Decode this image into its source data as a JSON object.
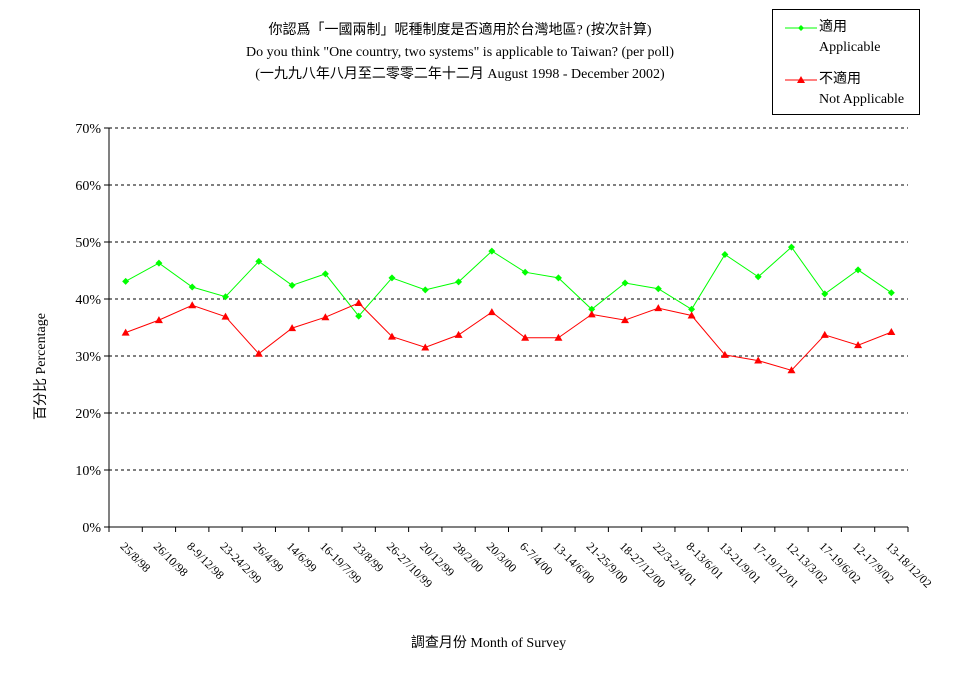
{
  "chart_data": {
    "type": "line",
    "title": "你認爲「一國兩制」呢種制度是否適用於台灣地區? (按次計算)",
    "subtitle": "Do you think \"One country, two systems\" is applicable to Taiwan? (per poll)",
    "subtitle2": "(一九九八年八月至二零零二年十二月 August 1998 - December 2002)",
    "xlabel": "調查月份 Month of Survey",
    "ylabel": "百分比 Percentage",
    "ylim": [
      0,
      70
    ],
    "yticks": [
      "0%",
      "10%",
      "20%",
      "30%",
      "40%",
      "50%",
      "60%",
      "70%"
    ],
    "grid": true,
    "legend_position": "top-right",
    "categories": [
      "25/8/98",
      "26/10/98",
      "8-9/12/98",
      "23-24/2/99",
      "26/4/99",
      "14/6/99",
      "16-19/7/99",
      "23/8/99",
      "26-27/10/99",
      "20/12/99",
      "28/2/00",
      "20/3/00",
      "6-7/4/00",
      "13-14/6/00",
      "21-25/9/00",
      "18-27/12/00",
      "22/3-2/4/01",
      "8-13/6/01",
      "13-21/9/01",
      "17-19/12/01",
      "12-13/3/02",
      "17-19/6/02",
      "12-17/9/02",
      "13-18/12/02"
    ],
    "series": [
      {
        "name": "適用",
        "name_en": "Applicable",
        "color": "#00ff00",
        "marker": "diamond",
        "values": [
          43.1,
          46.3,
          42.1,
          40.4,
          46.6,
          42.4,
          44.4,
          37.0,
          43.7,
          41.6,
          43.0,
          48.4,
          44.7,
          43.7,
          38.2,
          42.8,
          41.8,
          38.2,
          47.8,
          43.9,
          49.1,
          40.9,
          45.1,
          41.1
        ]
      },
      {
        "name": "不適用",
        "name_en": "Not Applicable",
        "color": "#ff0000",
        "marker": "triangle",
        "values": [
          34.1,
          36.3,
          38.9,
          36.9,
          30.4,
          34.9,
          36.8,
          39.3,
          33.4,
          31.5,
          33.7,
          37.7,
          33.2,
          33.2,
          37.3,
          36.3,
          38.4,
          37.1,
          30.2,
          29.2,
          27.5,
          33.7,
          31.9,
          34.2
        ]
      }
    ]
  }
}
